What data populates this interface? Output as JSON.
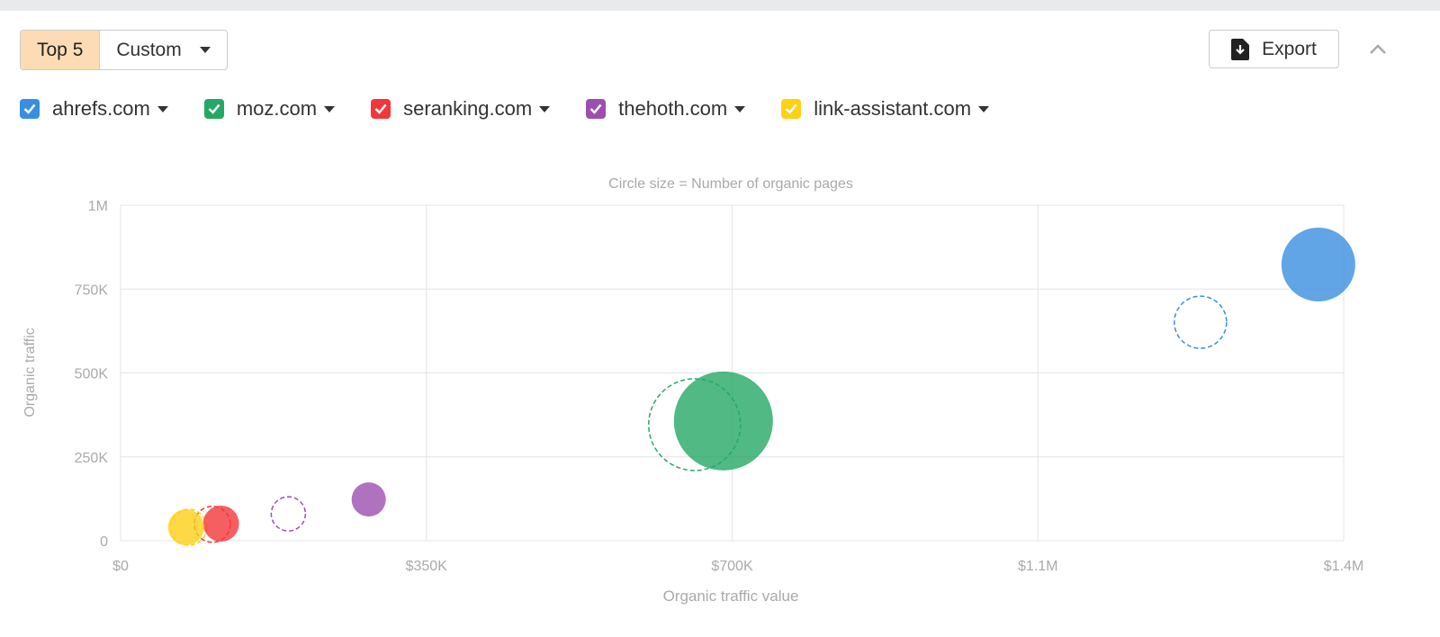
{
  "toolbar": {
    "top5_label": "Top 5",
    "custom_label": "Custom",
    "export_label": "Export"
  },
  "legend": [
    {
      "label": "ahrefs.com",
      "color": "#3a8ee0"
    },
    {
      "label": "moz.com",
      "color": "#24a865"
    },
    {
      "label": "seranking.com",
      "color": "#f2373b"
    },
    {
      "label": "thehoth.com",
      "color": "#9b4fae"
    },
    {
      "label": "link-assistant.com",
      "color": "#fcd116"
    }
  ],
  "chart_data": {
    "type": "bubble",
    "subtitle": "Circle size = Number of organic pages",
    "xlabel": "Organic traffic value",
    "ylabel": "Organic traffic",
    "xlim": [
      0,
      1400000
    ],
    "ylim": [
      0,
      1000000
    ],
    "x_ticks": [
      "$0",
      "$350K",
      "$700K",
      "$1.1M",
      "$1.4M"
    ],
    "y_ticks": [
      "0",
      "250K",
      "500K",
      "750K",
      "1M"
    ],
    "grid": true,
    "series": [
      {
        "name": "ahrefs.com",
        "color": "#3a8ee0",
        "current": {
          "x": 1371000,
          "y": 823000,
          "size_relative": 1681
        },
        "previous": {
          "x": 1236000,
          "y": 651000,
          "size_relative": 841
        }
      },
      {
        "name": "moz.com",
        "color": "#24a865",
        "current": {
          "x": 690000,
          "y": 357000,
          "size_relative": 3025
        },
        "previous": {
          "x": 657000,
          "y": 346000,
          "size_relative": 2601
        }
      },
      {
        "name": "seranking.com",
        "color": "#f2373b",
        "current": {
          "x": 115000,
          "y": 51000,
          "size_relative": 400
        },
        "previous": {
          "x": 105000,
          "y": 49000,
          "size_relative": 400
        }
      },
      {
        "name": "thehoth.com",
        "color": "#9b4fae",
        "current": {
          "x": 284000,
          "y": 123000,
          "size_relative": 361
        },
        "previous": {
          "x": 192000,
          "y": 80000,
          "size_relative": 361
        }
      },
      {
        "name": "link-assistant.com",
        "color": "#fcd116",
        "current": {
          "x": 75000,
          "y": 40000,
          "size_relative": 400
        },
        "previous": {
          "x": 78000,
          "y": 40000,
          "size_relative": 400
        }
      }
    ]
  }
}
